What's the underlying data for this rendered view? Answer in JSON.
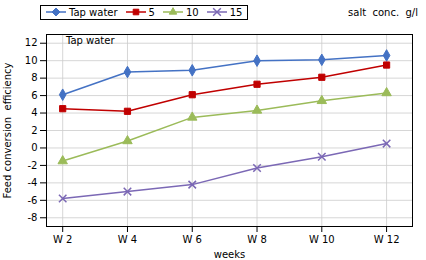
{
  "chart_data": {
    "type": "line",
    "x": [
      2,
      4,
      6,
      8,
      10,
      12
    ],
    "series": [
      {
        "name": "Tap water",
        "color": "#4472C4",
        "marker": "diamond",
        "values": [
          6.1,
          8.7,
          8.9,
          10.0,
          10.1,
          10.6
        ]
      },
      {
        "name": "5",
        "color": "#C00000",
        "marker": "square",
        "values": [
          4.5,
          4.2,
          6.1,
          7.3,
          8.1,
          9.5
        ]
      },
      {
        "name": "10",
        "color": "#9BBB59",
        "marker": "triangle",
        "values": [
          -1.5,
          0.8,
          3.5,
          4.3,
          5.4,
          6.3
        ]
      },
      {
        "name": "15",
        "color": "#7B68B5",
        "marker": "x",
        "values": [
          -5.8,
          -5.0,
          -4.2,
          -2.3,
          -1.0,
          0.5
        ]
      }
    ],
    "xlabel": "weeks",
    "ylabel": "Feed conversion  efficiency",
    "xlim": [
      1.5,
      12.8
    ],
    "xticks": [
      {
        "value": 2,
        "label": "W 2"
      },
      {
        "value": 4,
        "label": "W 4"
      },
      {
        "value": 6,
        "label": "W 6"
      },
      {
        "value": 8,
        "label": "W 8"
      },
      {
        "value": 10,
        "label": "W 10"
      },
      {
        "value": 12,
        "label": "W 12"
      }
    ],
    "ylim": [
      -9,
      13
    ],
    "yticks": [
      -8,
      -6,
      -4,
      -2,
      0,
      2,
      4,
      6,
      8,
      10,
      12
    ],
    "grid": true,
    "legend": "top",
    "annotations": [
      {
        "text": "Tap water",
        "x": 2.1,
        "y": 11.8
      },
      {
        "text": "salt  conc.  g/l"
      }
    ]
  }
}
